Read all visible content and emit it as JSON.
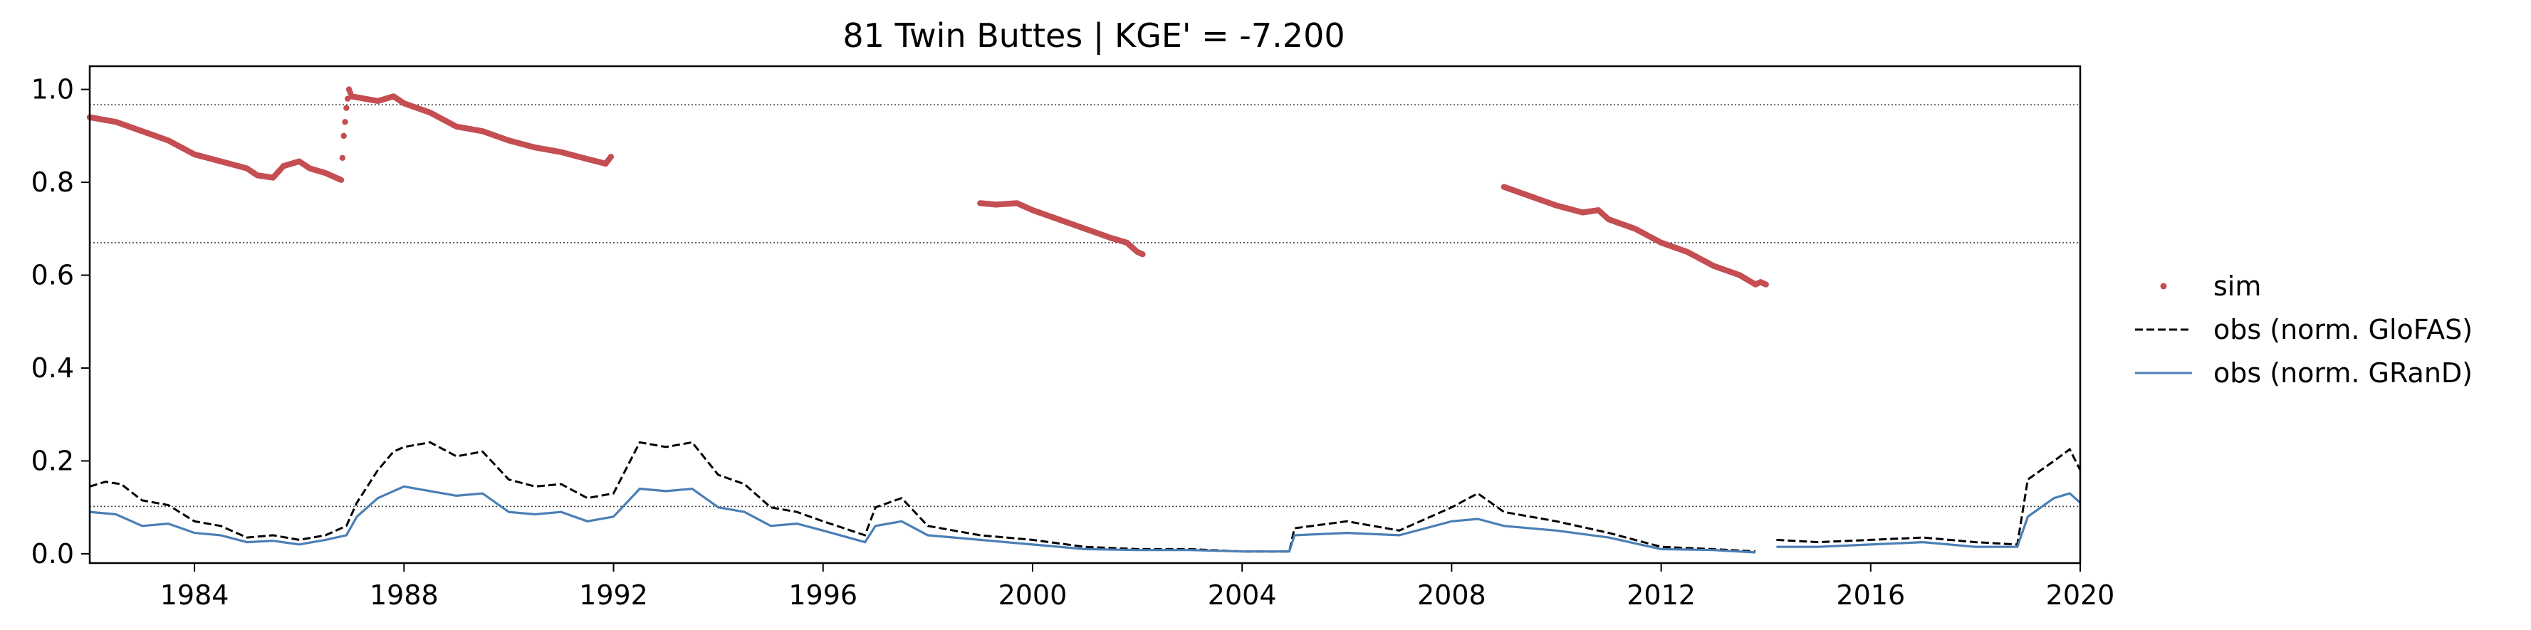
{
  "chart_data": {
    "type": "scatter",
    "title": "81  Twin Buttes | KGE' = -7.200",
    "xlabel": "",
    "ylabel": "",
    "xlim": [
      1982.0,
      2020.0
    ],
    "ylim": [
      -0.02,
      1.05
    ],
    "x_ticks": [
      "1984",
      "1988",
      "1992",
      "1996",
      "2000",
      "2004",
      "2008",
      "2012",
      "2016",
      "2020"
    ],
    "x_tick_values": [
      1984,
      1988,
      1992,
      1996,
      2000,
      2004,
      2008,
      2012,
      2016,
      2020
    ],
    "y_ticks": [
      "0.0",
      "0.2",
      "0.4",
      "0.6",
      "0.8",
      "1.0"
    ],
    "y_tick_values": [
      0.0,
      0.2,
      0.4,
      0.6,
      0.8,
      1.0
    ],
    "hlines": [
      0.967,
      0.67,
      0.102
    ],
    "legend_position": "right",
    "grid": false,
    "series": [
      {
        "name": "sim",
        "style": "dots",
        "color": "#c44e52",
        "segments": [
          [
            [
              1982.0,
              0.94
            ],
            [
              1982.5,
              0.93
            ],
            [
              1983.0,
              0.91
            ],
            [
              1983.5,
              0.89
            ],
            [
              1984.0,
              0.86
            ],
            [
              1984.5,
              0.845
            ],
            [
              1985.0,
              0.83
            ],
            [
              1985.2,
              0.815
            ],
            [
              1985.5,
              0.81
            ],
            [
              1985.7,
              0.835
            ],
            [
              1986.0,
              0.845
            ],
            [
              1986.2,
              0.83
            ],
            [
              1986.5,
              0.82
            ],
            [
              1986.7,
              0.81
            ],
            [
              1986.8,
              0.805
            ],
            [
              1986.85,
              0.9
            ],
            [
              1986.9,
              0.96
            ],
            [
              1986.95,
              1.0
            ],
            [
              1987.0,
              0.985
            ],
            [
              1987.5,
              0.975
            ],
            [
              1987.8,
              0.985
            ],
            [
              1988.0,
              0.97
            ],
            [
              1988.5,
              0.95
            ],
            [
              1989.0,
              0.92
            ],
            [
              1989.5,
              0.91
            ],
            [
              1990.0,
              0.89
            ],
            [
              1990.5,
              0.875
            ],
            [
              1991.0,
              0.865
            ],
            [
              1991.5,
              0.85
            ],
            [
              1991.85,
              0.84
            ],
            [
              1991.95,
              0.855
            ]
          ],
          [
            [
              1999.0,
              0.755
            ],
            [
              1999.3,
              0.752
            ],
            [
              1999.7,
              0.755
            ],
            [
              2000.0,
              0.74
            ],
            [
              2000.5,
              0.72
            ],
            [
              2001.0,
              0.7
            ],
            [
              2001.5,
              0.68
            ],
            [
              2001.8,
              0.67
            ],
            [
              2002.0,
              0.65
            ],
            [
              2002.1,
              0.645
            ]
          ],
          [
            [
              2009.0,
              0.79
            ],
            [
              2009.5,
              0.77
            ],
            [
              2010.0,
              0.75
            ],
            [
              2010.5,
              0.735
            ],
            [
              2010.8,
              0.74
            ],
            [
              2011.0,
              0.72
            ],
            [
              2011.5,
              0.7
            ],
            [
              2012.0,
              0.67
            ],
            [
              2012.5,
              0.65
            ],
            [
              2013.0,
              0.62
            ],
            [
              2013.5,
              0.6
            ],
            [
              2013.8,
              0.58
            ],
            [
              2013.9,
              0.585
            ],
            [
              2014.0,
              0.58
            ]
          ]
        ]
      },
      {
        "name": "obs (norm. GloFAS)",
        "style": "dashed",
        "color": "#000000",
        "segments": [
          [
            [
              1982.0,
              0.145
            ],
            [
              1982.3,
              0.155
            ],
            [
              1982.6,
              0.15
            ],
            [
              1983.0,
              0.115
            ],
            [
              1983.5,
              0.105
            ],
            [
              1984.0,
              0.07
            ],
            [
              1984.5,
              0.06
            ],
            [
              1985.0,
              0.035
            ],
            [
              1985.5,
              0.04
            ],
            [
              1986.0,
              0.03
            ],
            [
              1986.5,
              0.04
            ],
            [
              1986.9,
              0.06
            ],
            [
              1987.1,
              0.11
            ],
            [
              1987.5,
              0.18
            ],
            [
              1987.8,
              0.22
            ],
            [
              1988.0,
              0.23
            ],
            [
              1988.5,
              0.24
            ],
            [
              1989.0,
              0.21
            ],
            [
              1989.5,
              0.22
            ],
            [
              1990.0,
              0.16
            ],
            [
              1990.5,
              0.145
            ],
            [
              1991.0,
              0.15
            ],
            [
              1991.5,
              0.12
            ],
            [
              1992.0,
              0.13
            ],
            [
              1992.5,
              0.24
            ],
            [
              1993.0,
              0.23
            ],
            [
              1993.5,
              0.24
            ],
            [
              1994.0,
              0.17
            ],
            [
              1994.5,
              0.15
            ],
            [
              1995.0,
              0.1
            ],
            [
              1995.5,
              0.09
            ],
            [
              1996.0,
              0.07
            ],
            [
              1996.8,
              0.04
            ],
            [
              1997.0,
              0.1
            ],
            [
              1997.5,
              0.12
            ],
            [
              1998.0,
              0.06
            ],
            [
              1999.0,
              0.04
            ],
            [
              2000.0,
              0.03
            ],
            [
              2001.0,
              0.015
            ],
            [
              2002.0,
              0.01
            ],
            [
              2003.0,
              0.01
            ],
            [
              2004.0,
              0.005
            ],
            [
              2004.9,
              0.005
            ],
            [
              2005.0,
              0.055
            ],
            [
              2006.0,
              0.07
            ],
            [
              2007.0,
              0.05
            ],
            [
              2008.0,
              0.1
            ],
            [
              2008.5,
              0.13
            ],
            [
              2009.0,
              0.09
            ],
            [
              2010.0,
              0.07
            ],
            [
              2011.0,
              0.045
            ],
            [
              2012.0,
              0.015
            ],
            [
              2013.0,
              0.01
            ],
            [
              2013.8,
              0.005
            ]
          ],
          [
            [
              2014.2,
              0.03
            ],
            [
              2015.0,
              0.025
            ],
            [
              2016.0,
              0.03
            ],
            [
              2017.0,
              0.035
            ],
            [
              2018.0,
              0.025
            ],
            [
              2018.8,
              0.02
            ],
            [
              2019.0,
              0.16
            ],
            [
              2019.5,
              0.2
            ],
            [
              2019.8,
              0.225
            ],
            [
              2020.0,
              0.18
            ]
          ]
        ]
      },
      {
        "name": "obs (norm. GRanD)",
        "style": "solid",
        "color": "#4a7fb5",
        "segments": [
          [
            [
              1982.0,
              0.09
            ],
            [
              1982.5,
              0.085
            ],
            [
              1983.0,
              0.06
            ],
            [
              1983.5,
              0.065
            ],
            [
              1984.0,
              0.045
            ],
            [
              1984.5,
              0.04
            ],
            [
              1985.0,
              0.025
            ],
            [
              1985.5,
              0.028
            ],
            [
              1986.0,
              0.02
            ],
            [
              1986.5,
              0.03
            ],
            [
              1986.9,
              0.04
            ],
            [
              1987.1,
              0.08
            ],
            [
              1987.5,
              0.12
            ],
            [
              1988.0,
              0.145
            ],
            [
              1988.5,
              0.135
            ],
            [
              1989.0,
              0.125
            ],
            [
              1989.5,
              0.13
            ],
            [
              1990.0,
              0.09
            ],
            [
              1990.5,
              0.085
            ],
            [
              1991.0,
              0.09
            ],
            [
              1991.5,
              0.07
            ],
            [
              1992.0,
              0.08
            ],
            [
              1992.5,
              0.14
            ],
            [
              1993.0,
              0.135
            ],
            [
              1993.5,
              0.14
            ],
            [
              1994.0,
              0.1
            ],
            [
              1994.5,
              0.09
            ],
            [
              1995.0,
              0.06
            ],
            [
              1995.5,
              0.065
            ],
            [
              1996.0,
              0.05
            ],
            [
              1996.8,
              0.025
            ],
            [
              1997.0,
              0.06
            ],
            [
              1997.5,
              0.07
            ],
            [
              1998.0,
              0.04
            ],
            [
              1999.0,
              0.03
            ],
            [
              2000.0,
              0.02
            ],
            [
              2001.0,
              0.01
            ],
            [
              2002.0,
              0.008
            ],
            [
              2003.0,
              0.008
            ],
            [
              2004.0,
              0.005
            ],
            [
              2004.9,
              0.005
            ],
            [
              2005.0,
              0.04
            ],
            [
              2006.0,
              0.045
            ],
            [
              2007.0,
              0.04
            ],
            [
              2008.0,
              0.07
            ],
            [
              2008.5,
              0.075
            ],
            [
              2009.0,
              0.06
            ],
            [
              2010.0,
              0.05
            ],
            [
              2011.0,
              0.035
            ],
            [
              2012.0,
              0.01
            ],
            [
              2013.0,
              0.008
            ],
            [
              2013.8,
              0.003
            ]
          ],
          [
            [
              2014.2,
              0.015
            ],
            [
              2015.0,
              0.015
            ],
            [
              2016.0,
              0.02
            ],
            [
              2017.0,
              0.025
            ],
            [
              2018.0,
              0.015
            ],
            [
              2018.8,
              0.015
            ],
            [
              2019.0,
              0.08
            ],
            [
              2019.5,
              0.12
            ],
            [
              2019.8,
              0.13
            ],
            [
              2020.0,
              0.11
            ]
          ]
        ]
      }
    ]
  }
}
